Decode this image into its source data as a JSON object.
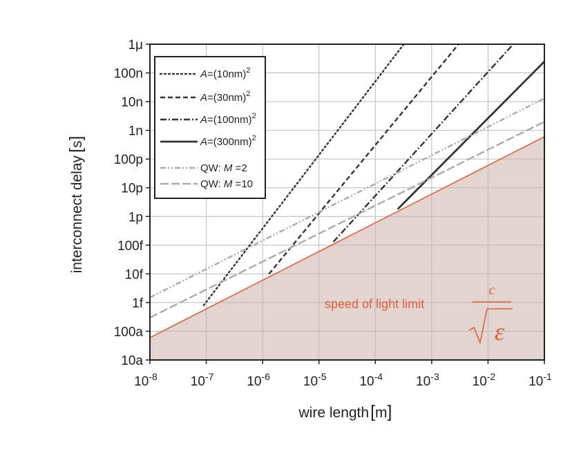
{
  "chart_data": {
    "type": "line",
    "xlabel": "wire length",
    "xunit": "m",
    "ylabel": "interconnect delay",
    "yunit": "s",
    "xscale": "log",
    "yscale": "log",
    "xlim": [
      1e-08,
      0.1
    ],
    "ylim": [
      1e-17,
      1e-06
    ],
    "x_ticks": [
      {
        "value": 1e-08,
        "base": "10",
        "exp": "-8"
      },
      {
        "value": 1e-07,
        "base": "10",
        "exp": "-7"
      },
      {
        "value": 1e-06,
        "base": "10",
        "exp": "-6"
      },
      {
        "value": 1e-05,
        "base": "10",
        "exp": "-5"
      },
      {
        "value": 0.0001,
        "base": "10",
        "exp": "-4"
      },
      {
        "value": 0.001,
        "base": "10",
        "exp": "-3"
      },
      {
        "value": 0.01,
        "base": "10",
        "exp": "-2"
      },
      {
        "value": 0.1,
        "base": "10",
        "exp": "-1"
      }
    ],
    "y_ticks": [
      {
        "value": 1e-17,
        "label": "10a"
      },
      {
        "value": 1e-16,
        "label": "100a"
      },
      {
        "value": 1e-15,
        "label": "1f"
      },
      {
        "value": 1e-14,
        "label": "10f"
      },
      {
        "value": 1e-13,
        "label": "100f"
      },
      {
        "value": 1e-12,
        "label": "1p"
      },
      {
        "value": 1e-11,
        "label": "10p"
      },
      {
        "value": 1e-10,
        "label": "100p"
      },
      {
        "value": 1e-09,
        "label": "1n"
      },
      {
        "value": 1e-08,
        "label": "10n"
      },
      {
        "value": 1e-07,
        "label": "100n"
      },
      {
        "value": 1e-06,
        "label": "1μ"
      }
    ],
    "grid": true,
    "legend_position": "top-left",
    "series": [
      {
        "legend": {
          "prefix": "A",
          "middle": "=(10nm)",
          "sup": "2"
        },
        "style": "dotted",
        "color": "#333333",
        "points": [
          [
            9e-08,
            8e-16
          ],
          [
            0.00032,
            1e-06
          ]
        ]
      },
      {
        "legend": {
          "prefix": "A",
          "middle": "=(30nm)",
          "sup": "2"
        },
        "style": "dashed",
        "color": "#333333",
        "points": [
          [
            1.3e-06,
            1e-14
          ],
          [
            0.003,
            1e-06
          ]
        ]
      },
      {
        "legend": {
          "prefix": "A",
          "middle": "=(100nm)",
          "sup": "2"
        },
        "style": "dashdot",
        "color": "#333333",
        "points": [
          [
            1.8e-05,
            1.3e-13
          ],
          [
            0.028,
            1e-06
          ]
        ]
      },
      {
        "legend": {
          "prefix": "A",
          "middle": "=(300nm)",
          "sup": "2"
        },
        "style": "solid",
        "color": "#333333",
        "points": [
          [
            0.00025,
            1.8e-12
          ],
          [
            0.1,
            2.5e-07
          ]
        ]
      },
      {
        "legend": {
          "prefix": "QW: ",
          "italic": "M",
          "middle": " =2",
          "sup": ""
        },
        "style": "dashdotdot",
        "color": "#aaaaaa",
        "points": [
          [
            1e-08,
            1.5e-15
          ],
          [
            0.1,
            1.3e-08
          ]
        ]
      },
      {
        "legend": {
          "prefix": "QW: ",
          "italic": "M",
          "middle": " =10",
          "sup": ""
        },
        "style": "longdash",
        "color": "#aaaaaa",
        "points": [
          [
            1e-08,
            3e-16
          ],
          [
            0.1,
            2e-09
          ]
        ]
      }
    ],
    "limit_line": {
      "color": "#e0603c",
      "fill": "#e3d4cf",
      "points": [
        [
          1e-08,
          6e-17
        ],
        [
          0.1,
          6e-10
        ]
      ]
    },
    "annotation": {
      "text": "speed of light limit",
      "numerator": "c",
      "denominator": "ε",
      "color": "#e0603c"
    }
  }
}
